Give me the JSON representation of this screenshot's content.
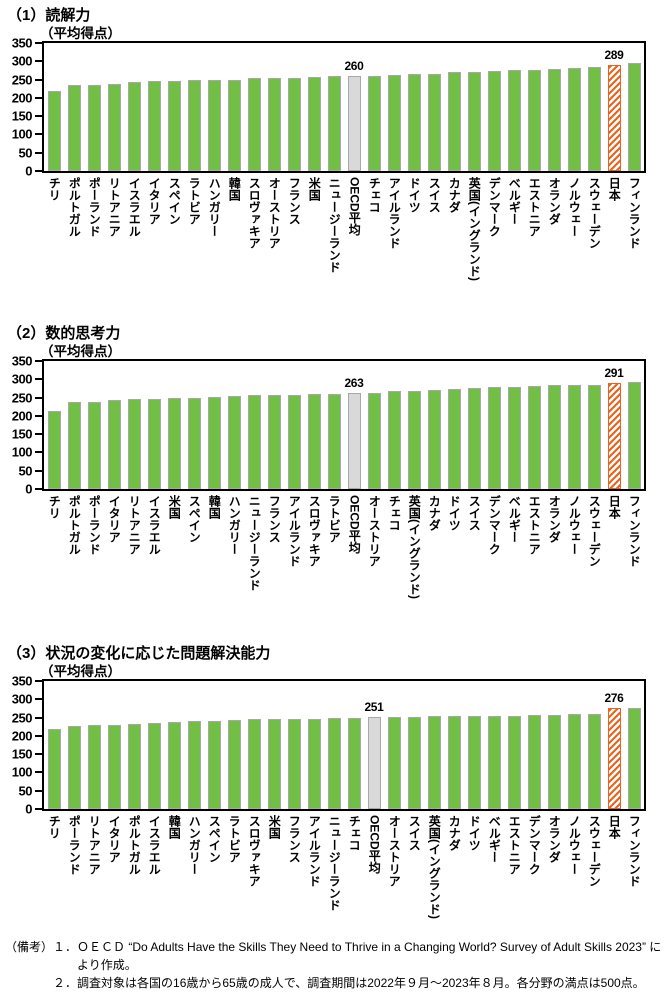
{
  "colors": {
    "bar_green": "#71BF44",
    "bar_outline": "#A8A8A8",
    "oecd_fill": "#D9D9D9",
    "japan_orange": "#E8641E",
    "axis_black": "#000000"
  },
  "chart_data": [
    {
      "type": "bar",
      "title": "（1）読解力",
      "unit_label": "（平均得点）",
      "ylim": [
        0,
        350
      ],
      "y_ticks": [
        350,
        300,
        250,
        200,
        150,
        100,
        50,
        0
      ],
      "categories": [
        "チリ",
        "ポルトガル",
        "ポーランド",
        "リトアニア",
        "イスラエル",
        "イタリア",
        "スペイン",
        "ラトビア",
        "ハンガリー",
        "韓国",
        "スロヴァキア",
        "オーストリア",
        "フランス",
        "米国",
        "ニュージーランド",
        "OECD平均",
        "チェコ",
        "アイルランド",
        "ドイツ",
        "スイス",
        "カナダ",
        "英国(イングランド)",
        "デンマーク",
        "ベルギー",
        "エストニア",
        "オランダ",
        "ノルウェー",
        "スウェーデン",
        "日本",
        "フィンランド"
      ],
      "values": [
        218,
        235,
        236,
        238,
        244,
        245,
        247,
        248,
        249,
        249,
        254,
        254,
        255,
        258,
        260,
        260,
        260,
        264,
        266,
        266,
        271,
        272,
        273,
        275,
        276,
        279,
        281,
        284,
        289,
        296
      ],
      "highlight": {
        "oecd_average_index": 15,
        "japan_index": 28
      },
      "value_labels": [
        {
          "index": 15,
          "text": "260"
        },
        {
          "index": 28,
          "text": "289"
        }
      ]
    },
    {
      "type": "bar",
      "title": "（2）数的思考力",
      "unit_label": "（平均得点）",
      "ylim": [
        0,
        350
      ],
      "y_ticks": [
        350,
        300,
        250,
        200,
        150,
        100,
        50,
        0
      ],
      "categories": [
        "チリ",
        "ポルトガル",
        "ポーランド",
        "イタリア",
        "リトアニア",
        "イスラエル",
        "米国",
        "スペイン",
        "韓国",
        "ハンガリー",
        "ニュージーランド",
        "フランス",
        "アイルランド",
        "スロヴァキア",
        "ラトビア",
        "OECD平均",
        "オーストリア",
        "チェコ",
        "英国(イングランド)",
        "カナダ",
        "ドイツ",
        "スイス",
        "デンマーク",
        "ベルギー",
        "エストニア",
        "オランダ",
        "ノルウェー",
        "スウェーデン",
        "日本",
        "フィンランド"
      ],
      "values": [
        214,
        238,
        239,
        244,
        246,
        247,
        249,
        250,
        253,
        254,
        256,
        256,
        258,
        259,
        260,
        263,
        264,
        267,
        268,
        271,
        273,
        276,
        279,
        279,
        281,
        284,
        285,
        285,
        291,
        294
      ],
      "highlight": {
        "oecd_average_index": 15,
        "japan_index": 28
      },
      "value_labels": [
        {
          "index": 15,
          "text": "263"
        },
        {
          "index": 28,
          "text": "291"
        }
      ]
    },
    {
      "type": "bar",
      "title": "（3）状況の変化に応じた問題解決能力",
      "unit_label": "（平均得点）",
      "ylim": [
        0,
        350
      ],
      "y_ticks": [
        350,
        300,
        250,
        200,
        150,
        100,
        50,
        0
      ],
      "categories": [
        "チリ",
        "ポーランド",
        "リトアニア",
        "イタリア",
        "ポルトガル",
        "イスラエル",
        "韓国",
        "ハンガリー",
        "スペイン",
        "ラトビア",
        "スロヴァキア",
        "米国",
        "フランス",
        "アイルランド",
        "ニュージーランド",
        "チェコ",
        "OECD平均",
        "オーストリア",
        "スイス",
        "英国(イングランド)",
        "カナダ",
        "ドイツ",
        "ベルギー",
        "エストニア",
        "デンマーク",
        "オランダ",
        "ノルウェー",
        "スウェーデン",
        "日本",
        "フィンランド"
      ],
      "values": [
        218,
        227,
        230,
        231,
        233,
        236,
        238,
        241,
        242,
        244,
        245,
        246,
        246,
        247,
        248,
        249,
        251,
        252,
        253,
        254,
        254,
        255,
        255,
        255,
        257,
        257,
        261,
        261,
        276,
        276
      ],
      "highlight": {
        "oecd_average_index": 16,
        "japan_index": 28
      },
      "value_labels": [
        {
          "index": 16,
          "text": "251"
        },
        {
          "index": 28,
          "text": "276"
        }
      ]
    }
  ],
  "notes": {
    "prefix": "（備考）",
    "items": [
      {
        "num": "１．",
        "text": "ＯＥＣＤ “Do Adults Have the Skills They Need to Thrive in a Changing World? Survey of Adult Skills 2023” により作成。"
      },
      {
        "num": "２．",
        "text": "調査対象は各国の16歳から65歳の成人で、調査期間は2022年９月～2023年８月。各分野の満点は500点。"
      }
    ]
  }
}
